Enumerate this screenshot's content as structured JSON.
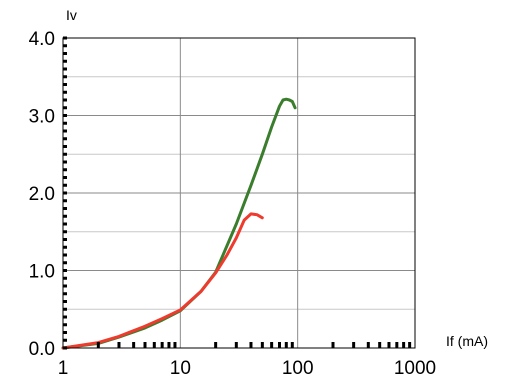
{
  "chart_data": {
    "type": "line",
    "xlabel": "If (mA)",
    "ylabel": "Iv",
    "x_scale": "log",
    "xlim": [
      1,
      1000
    ],
    "ylim": [
      0,
      4.0
    ],
    "x_ticks": [
      1,
      10,
      100,
      1000
    ],
    "x_tick_labels": [
      "1",
      "10",
      "100",
      "1000"
    ],
    "y_ticks": [
      0,
      1,
      2,
      3,
      4
    ],
    "y_tick_labels": [
      "0.0",
      "1.0",
      "2.0",
      "3.0",
      "4.0"
    ],
    "grid": true,
    "legend": "none",
    "series": [
      {
        "color": "#3a7d2c",
        "x": [
          1,
          2,
          3,
          5,
          7,
          10,
          15,
          20,
          30,
          40,
          50,
          60,
          70,
          75,
          80,
          85,
          90,
          95
        ],
        "y": [
          0.0,
          0.06,
          0.14,
          0.26,
          0.36,
          0.48,
          0.73,
          0.98,
          1.6,
          2.1,
          2.5,
          2.85,
          3.12,
          3.2,
          3.21,
          3.2,
          3.18,
          3.1
        ]
      },
      {
        "color": "#ee3b2e",
        "x": [
          1,
          2,
          3,
          5,
          7,
          10,
          15,
          20,
          25,
          30,
          35,
          40,
          45,
          50
        ],
        "y": [
          0.0,
          0.07,
          0.15,
          0.28,
          0.38,
          0.49,
          0.73,
          0.97,
          1.2,
          1.42,
          1.65,
          1.73,
          1.72,
          1.68
        ]
      }
    ]
  }
}
